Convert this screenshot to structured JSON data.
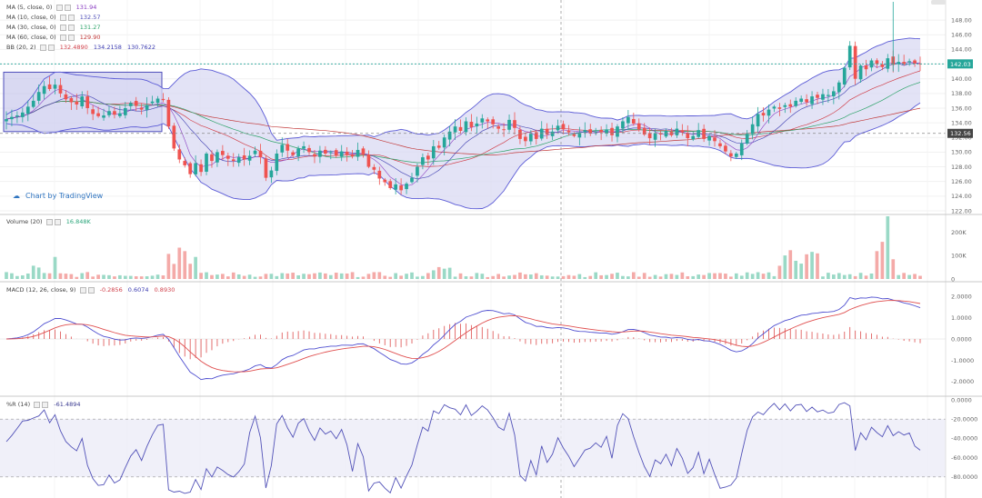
{
  "indicators": {
    "ma5": {
      "label": "MA (5, close, 0)",
      "value": "131.94",
      "color": "#8a3ec2"
    },
    "ma10": {
      "label": "MA (10, close, 0)",
      "value": "132.57",
      "color": "#4f4fb8"
    },
    "ma30": {
      "label": "MA (30, close, 0)",
      "value": "131.27",
      "color": "#2ea36a"
    },
    "ma60": {
      "label": "MA (60, close, 0)",
      "value": "129.90",
      "color": "#c23a3a"
    },
    "bb": {
      "label": "BB (20, 2)",
      "v1": "132.4890",
      "v2": "134.2158",
      "v3": "130.7622",
      "c1": "#d0404a",
      "c2": "#3a3ab0",
      "c3": "#3a3ab0"
    }
  },
  "volume_header": {
    "label": "Volume (20)",
    "value": "16.848K",
    "color": "#2aa57a"
  },
  "macd_header": {
    "label": "MACD (12, 26, close, 9)",
    "v1": "-0.2856",
    "v2": "0.6074",
    "v3": "0.8930",
    "c1": "#d0404a",
    "c2": "#3a3ab0",
    "c3": "#d0404a"
  },
  "wr_header": {
    "label": "%R (14)",
    "value": "-61.4894",
    "color": "#3a3a90"
  },
  "brand": {
    "text": "Chart by TradingView"
  },
  "price_labels": {
    "last": "142.03",
    "crosshair": "132.56"
  },
  "colors": {
    "up": "#26a69a",
    "down": "#ef5350",
    "band_fill": "#d9d9f3",
    "band_line": "#5b5bd6",
    "macd_line": "#4f4fd0",
    "signal_line": "#e05050",
    "wr_line": "#5252b8"
  },
  "chart_data": [
    {
      "type": "candlestick",
      "title": "",
      "xlabel": "",
      "ylabel": "",
      "ylim": [
        121.5,
        150
      ],
      "yticks": [
        122,
        124,
        126,
        128,
        130,
        132,
        134,
        136,
        138,
        140,
        142,
        144,
        146,
        148
      ],
      "grid": true,
      "close": [
        134.5,
        134.8,
        135.0,
        135.4,
        136.2,
        137.0,
        138.2,
        139.0,
        138.6,
        139.2,
        138.0,
        137.2,
        136.8,
        136.5,
        137.6,
        136.0,
        135.2,
        134.9,
        135.0,
        135.6,
        135.1,
        135.3,
        136.0,
        136.7,
        136.3,
        135.8,
        136.4,
        136.9,
        137.3,
        137.1,
        133.5,
        130.5,
        129.0,
        128.2,
        127.0,
        128.5,
        127.3,
        129.8,
        128.8,
        130.0,
        129.6,
        129.1,
        128.8,
        129.3,
        129.0,
        129.5,
        130.2,
        129.3,
        126.5,
        127.5,
        129.8,
        131.0,
        130.2,
        129.6,
        130.5,
        130.8,
        130.0,
        129.4,
        130.2,
        129.8,
        130.0,
        129.5,
        130.1,
        129.6,
        129.4,
        130.3,
        129.7,
        128.0,
        127.6,
        126.4,
        125.9,
        125.1,
        125.6,
        124.8,
        125.7,
        126.5,
        128.0,
        129.3,
        129.0,
        130.8,
        130.6,
        132.0,
        132.8,
        133.5,
        132.9,
        134.2,
        133.4,
        133.9,
        134.6,
        134.2,
        133.8,
        133.2,
        133.0,
        134.4,
        133.3,
        131.8,
        131.5,
        132.5,
        131.8,
        133.2,
        132.4,
        132.8,
        133.6,
        133.1,
        132.7,
        132.2,
        132.6,
        133.0,
        132.6,
        132.8,
        132.7,
        133.1,
        132.3,
        133.5,
        134.2,
        134.8,
        133.9,
        133.1,
        132.4,
        131.9,
        132.6,
        132.4,
        132.9,
        132.3,
        133.2,
        132.7,
        131.9,
        132.2,
        133.0,
        131.8,
        132.2,
        131.5,
        130.8,
        130.1,
        129.4,
        129.8,
        131.2,
        132.5,
        133.8,
        135.2,
        135.0,
        135.8,
        136.2,
        135.9,
        136.4,
        136.2,
        137.0,
        137.3,
        136.8,
        137.6,
        137.4,
        137.9,
        137.8,
        138.3,
        139.5,
        141.5,
        144.5,
        140.0,
        141.8,
        141.3,
        142.5,
        142.0,
        141.6,
        142.8,
        141.9,
        142.3,
        142.0,
        142.4,
        142.1,
        142.03
      ],
      "legend": [
        "MA (5, close, 0)",
        "MA (10, close, 0)",
        "MA (30, close, 0)",
        "MA (60, close, 0)",
        "BB (20, 2)"
      ]
    },
    {
      "type": "bar",
      "title": "Volume (20)",
      "yticks_labels": [
        "0",
        "100K",
        "200K"
      ],
      "ylim": [
        0,
        270000
      ]
    },
    {
      "type": "line",
      "title": "MACD (12, 26, close, 9)",
      "yticks_labels": [
        "2.0000",
        "1.0000",
        "0.0000",
        "-1.0000",
        "-2.0000"
      ],
      "ylim": [
        -2.6,
        2.6
      ]
    },
    {
      "type": "line",
      "title": "%R (14)",
      "yticks_labels": [
        "0.0000",
        "-20.0000",
        "-40.0000",
        "-60.0000",
        "-80.0000"
      ],
      "ylim": [
        -100,
        0
      ],
      "levels": [
        -20,
        -80
      ]
    }
  ]
}
